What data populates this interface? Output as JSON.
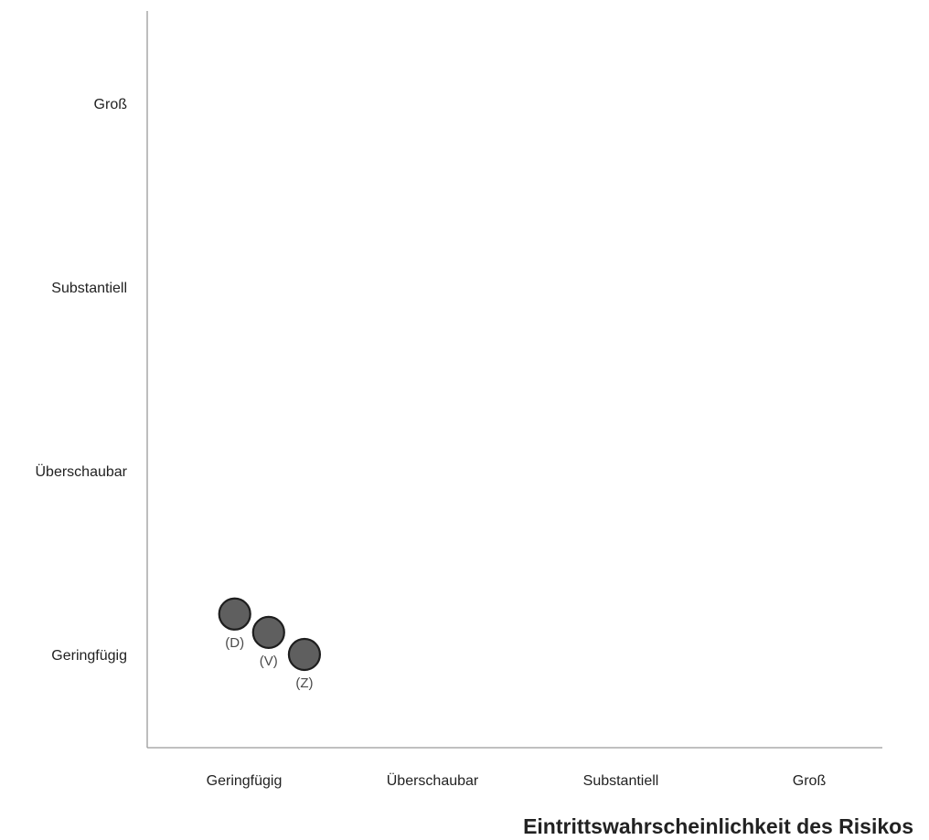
{
  "chart_data": {
    "type": "scatter",
    "title": "",
    "xlabel": "Eintrittswahrscheinlichkeit des Risikos",
    "ylabel": "",
    "x_categories": [
      "Geringfügig",
      "Überschaubar",
      "Substantiell",
      "Groß"
    ],
    "y_categories": [
      "Geringfügig",
      "Überschaubar",
      "Substantiell",
      "Groß"
    ],
    "grid": false,
    "legend": "none",
    "marker_color": "#5f5f5f",
    "points": [
      {
        "label": "(D)",
        "x": 0.95,
        "y": 1.22
      },
      {
        "label": "(V)",
        "x": 1.13,
        "y": 1.12
      },
      {
        "label": "(Z)",
        "x": 1.32,
        "y": 1.0
      }
    ]
  }
}
